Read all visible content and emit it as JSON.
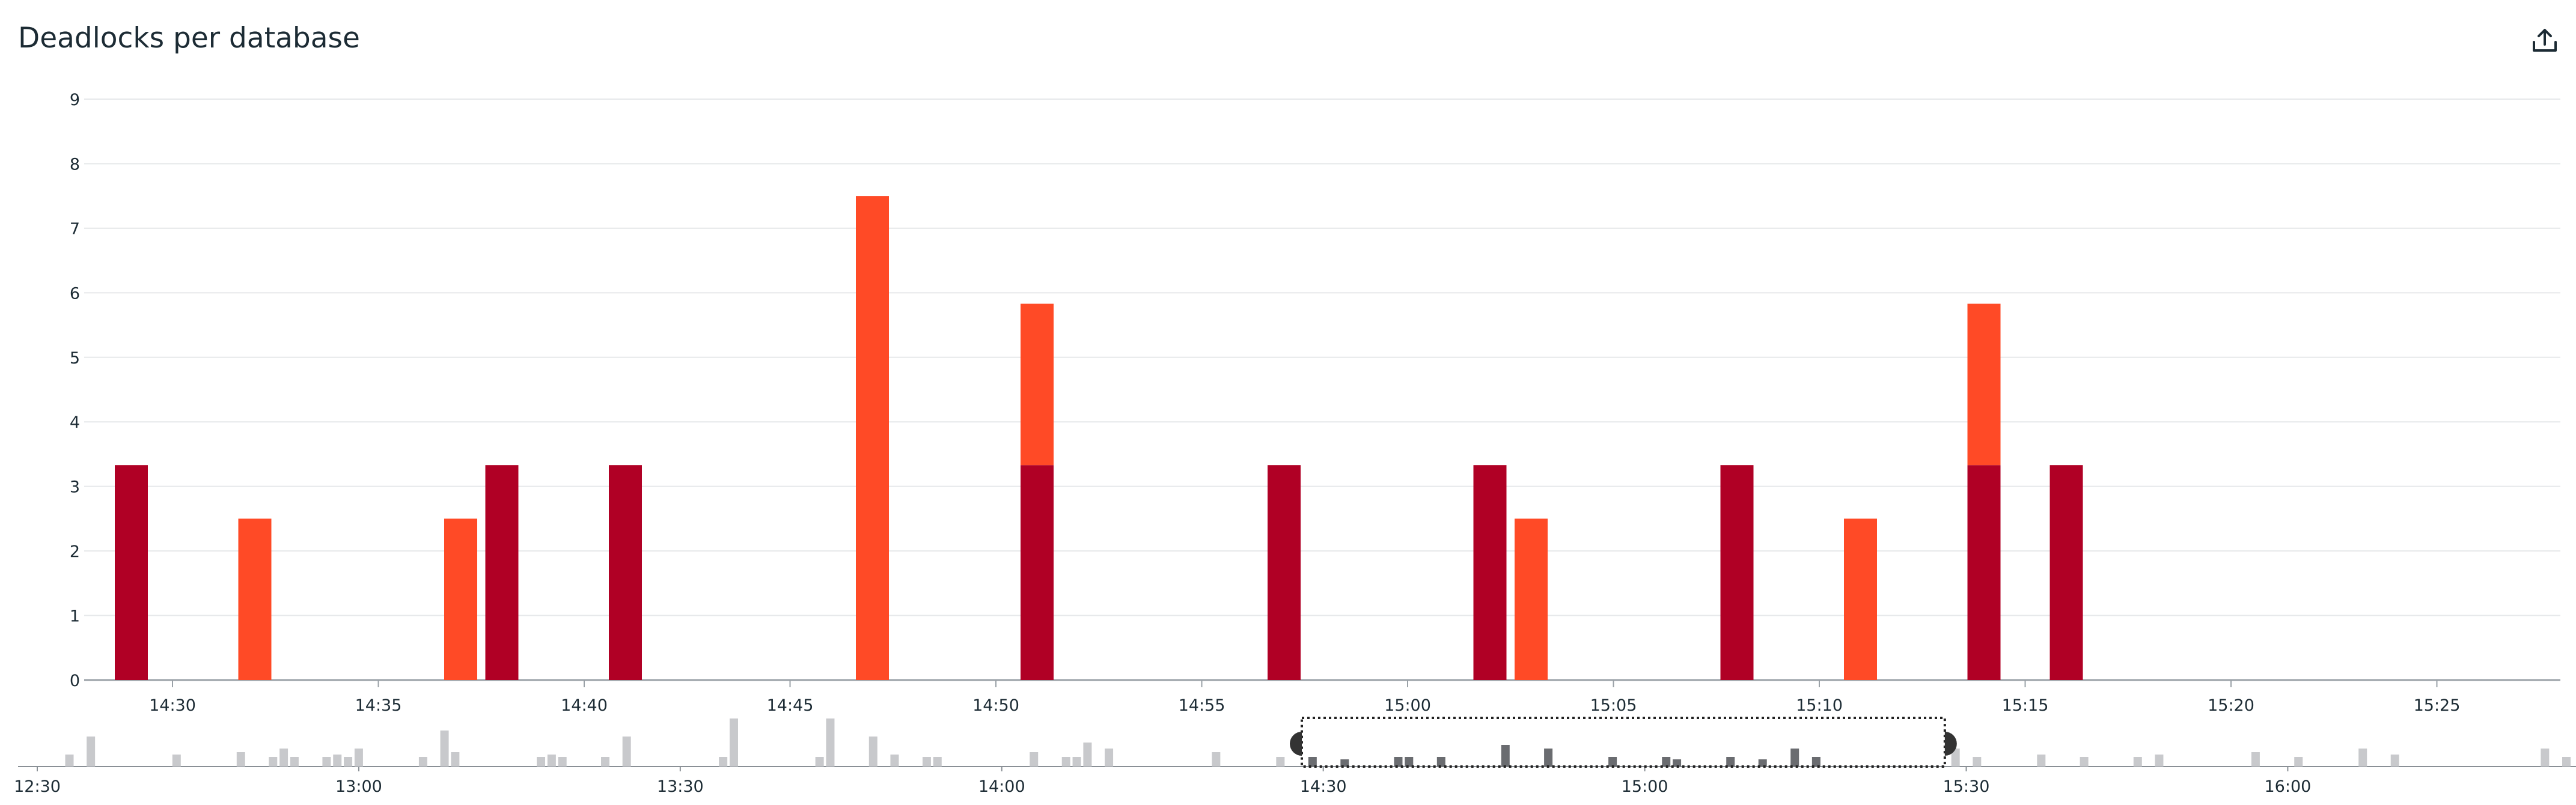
{
  "panel": {
    "title": "Deadlocks per database"
  },
  "icons": {
    "export": "export-icon"
  },
  "colors": {
    "series_dark": "#b00025",
    "series_light": "#ff4a26",
    "grid": "#e6e8ea",
    "axis": "#9aa1a7",
    "overview_bar": "#c8c9cc",
    "overview_selected_bar": "#6a6c70",
    "selection_border": "#222222",
    "handle": "#333333"
  },
  "chart_data": {
    "type": "bar",
    "stacked": true,
    "title": "Deadlocks per database",
    "xlabel": "",
    "ylabel": "",
    "ylim": [
      0,
      9
    ],
    "y_ticks": [
      "0",
      "1",
      "2",
      "3",
      "4",
      "5",
      "6",
      "7",
      "8",
      "9"
    ],
    "x_range": [
      "14:28",
      "15:28"
    ],
    "x_ticks": [
      "14:30",
      "14:35",
      "14:40",
      "14:45",
      "14:50",
      "14:55",
      "15:00",
      "15:05",
      "15:10",
      "15:15",
      "15:20",
      "15:25"
    ],
    "grid": true,
    "legend": "none",
    "series": [
      {
        "color": "#b00025",
        "points": [
          {
            "x": "14:29",
            "y": 3.33
          },
          {
            "x": "14:38",
            "y": 3.33
          },
          {
            "x": "14:41",
            "y": 3.33
          },
          {
            "x": "14:51",
            "y": 3.33
          },
          {
            "x": "14:57",
            "y": 3.33
          },
          {
            "x": "15:02",
            "y": 3.33
          },
          {
            "x": "15:08",
            "y": 3.33
          },
          {
            "x": "15:14",
            "y": 3.33
          },
          {
            "x": "15:16",
            "y": 3.33
          }
        ]
      },
      {
        "color": "#ff4a26",
        "points": [
          {
            "x": "14:32",
            "y": 2.5
          },
          {
            "x": "14:37",
            "y": 2.5
          },
          {
            "x": "14:47",
            "y": 7.5
          },
          {
            "x": "14:51",
            "y": 2.5
          },
          {
            "x": "15:03",
            "y": 2.5
          },
          {
            "x": "15:11",
            "y": 2.5
          },
          {
            "x": "15:14",
            "y": 2.5
          }
        ]
      }
    ]
  },
  "overview": {
    "x_range": [
      "12:30",
      "16:26"
    ],
    "x_ticks": [
      "12:30",
      "13:00",
      "13:30",
      "14:00",
      "14:30",
      "15:00",
      "15:30",
      "16:00"
    ],
    "selection": [
      "14:28",
      "15:28"
    ],
    "bars": [
      {
        "x": "12:33",
        "v": 1
      },
      {
        "x": "12:35",
        "v": 2.5
      },
      {
        "x": "12:43",
        "v": 1
      },
      {
        "x": "12:49",
        "v": 1.2
      },
      {
        "x": "12:52",
        "v": 0.8
      },
      {
        "x": "12:53",
        "v": 1.5
      },
      {
        "x": "12:54",
        "v": 0.8
      },
      {
        "x": "12:57",
        "v": 0.8
      },
      {
        "x": "12:58",
        "v": 1
      },
      {
        "x": "12:59",
        "v": 0.8
      },
      {
        "x": "13:00",
        "v": 1.5
      },
      {
        "x": "13:06",
        "v": 0.8
      },
      {
        "x": "13:08",
        "v": 3
      },
      {
        "x": "13:09",
        "v": 1.2
      },
      {
        "x": "13:17",
        "v": 0.8
      },
      {
        "x": "13:18",
        "v": 1
      },
      {
        "x": "13:19",
        "v": 0.8
      },
      {
        "x": "13:23",
        "v": 0.8
      },
      {
        "x": "13:25",
        "v": 2.5
      },
      {
        "x": "13:34",
        "v": 0.8
      },
      {
        "x": "13:35",
        "v": 4
      },
      {
        "x": "13:43",
        "v": 0.8
      },
      {
        "x": "13:44",
        "v": 4
      },
      {
        "x": "13:48",
        "v": 2.5
      },
      {
        "x": "13:50",
        "v": 1
      },
      {
        "x": "13:53",
        "v": 0.8
      },
      {
        "x": "13:54",
        "v": 0.8
      },
      {
        "x": "14:03",
        "v": 1.2
      },
      {
        "x": "14:06",
        "v": 0.8
      },
      {
        "x": "14:07",
        "v": 0.8
      },
      {
        "x": "14:08",
        "v": 2
      },
      {
        "x": "14:10",
        "v": 1.5
      },
      {
        "x": "14:20",
        "v": 1.2
      },
      {
        "x": "14:26",
        "v": 0.8
      },
      {
        "x": "14:29",
        "v": 0.8
      },
      {
        "x": "14:32",
        "v": 0.6
      },
      {
        "x": "14:37",
        "v": 0.8
      },
      {
        "x": "14:38",
        "v": 0.8
      },
      {
        "x": "14:41",
        "v": 0.8
      },
      {
        "x": "14:47",
        "v": 1.8
      },
      {
        "x": "14:51",
        "v": 1.5
      },
      {
        "x": "14:57",
        "v": 0.8
      },
      {
        "x": "15:02",
        "v": 0.8
      },
      {
        "x": "15:03",
        "v": 0.6
      },
      {
        "x": "15:08",
        "v": 0.8
      },
      {
        "x": "15:11",
        "v": 0.6
      },
      {
        "x": "15:14",
        "v": 1.5
      },
      {
        "x": "15:16",
        "v": 0.8
      },
      {
        "x": "15:29",
        "v": 1.5
      },
      {
        "x": "15:31",
        "v": 0.8
      },
      {
        "x": "15:37",
        "v": 1
      },
      {
        "x": "15:41",
        "v": 0.8
      },
      {
        "x": "15:46",
        "v": 0.8
      },
      {
        "x": "15:48",
        "v": 1
      },
      {
        "x": "15:57",
        "v": 1.2
      },
      {
        "x": "16:01",
        "v": 0.8
      },
      {
        "x": "16:07",
        "v": 1.5
      },
      {
        "x": "16:10",
        "v": 1
      },
      {
        "x": "16:24",
        "v": 1.5
      },
      {
        "x": "16:26",
        "v": 0.8
      }
    ]
  }
}
